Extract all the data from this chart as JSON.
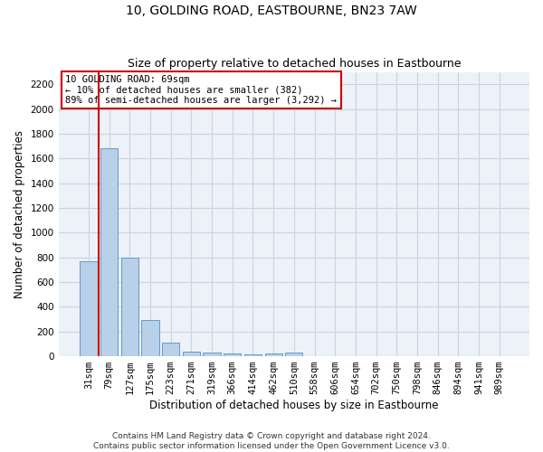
{
  "title": "10, GOLDING ROAD, EASTBOURNE, BN23 7AW",
  "subtitle": "Size of property relative to detached houses in Eastbourne",
  "xlabel": "Distribution of detached houses by size in Eastbourne",
  "ylabel": "Number of detached properties",
  "categories": [
    "31sqm",
    "79sqm",
    "127sqm",
    "175sqm",
    "223sqm",
    "271sqm",
    "319sqm",
    "366sqm",
    "414sqm",
    "462sqm",
    "510sqm",
    "558sqm",
    "606sqm",
    "654sqm",
    "702sqm",
    "750sqm",
    "798sqm",
    "846sqm",
    "894sqm",
    "941sqm",
    "989sqm"
  ],
  "values": [
    770,
    1680,
    800,
    295,
    110,
    35,
    28,
    22,
    18,
    20,
    28,
    0,
    0,
    0,
    0,
    0,
    0,
    0,
    0,
    0,
    0
  ],
  "bar_color": "#b8d0e8",
  "bar_edge_color": "#6699cc",
  "highlight_line_color": "#cc0000",
  "annotation_text_line1": "10 GOLDING ROAD: 69sqm",
  "annotation_text_line2": "← 10% of detached houses are smaller (382)",
  "annotation_text_line3": "89% of semi-detached houses are larger (3,292) →",
  "annotation_box_color": "#cc0000",
  "ylim": [
    0,
    2300
  ],
  "yticks": [
    0,
    200,
    400,
    600,
    800,
    1000,
    1200,
    1400,
    1600,
    1800,
    2000,
    2200
  ],
  "grid_color": "#c8d4e4",
  "bg_color": "#edf1f8",
  "footer": "Contains HM Land Registry data © Crown copyright and database right 2024.\nContains public sector information licensed under the Open Government Licence v3.0.",
  "title_fontsize": 10,
  "subtitle_fontsize": 9,
  "xlabel_fontsize": 8.5,
  "ylabel_fontsize": 8.5,
  "tick_fontsize": 7.5,
  "footer_fontsize": 6.5
}
